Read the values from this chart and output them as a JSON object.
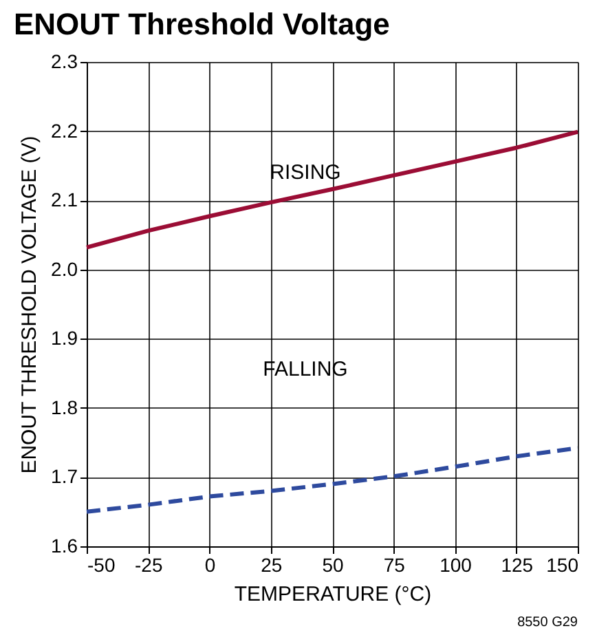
{
  "chart_data": {
    "type": "line",
    "title": "ENOUT Threshold Voltage",
    "xlabel": "TEMPERATURE (°C)",
    "ylabel": "ENOUT THRESHOLD VOLTAGE (V)",
    "x": [
      -50,
      -25,
      0,
      25,
      50,
      75,
      100,
      125,
      150
    ],
    "series": [
      {
        "color": "#9b0d35",
        "line_style": "solid",
        "values": [
          2.032,
          2.056,
          2.077,
          2.097,
          2.116,
          2.136,
          2.156,
          2.176,
          2.199
        ]
      },
      {
        "color": "#2e4a9e",
        "line_style": "dashed",
        "values": [
          1.65,
          1.66,
          1.672,
          1.68,
          1.69,
          1.701,
          1.715,
          1.73,
          1.742
        ]
      }
    ],
    "xlim": [
      -50,
      150
    ],
    "xticks": [
      -50,
      -25,
      0,
      25,
      50,
      75,
      100,
      125,
      150
    ],
    "ylim": [
      1.6,
      2.3
    ],
    "yticks": [
      {
        "value": 1.6,
        "label": "1.6"
      },
      {
        "value": 1.7,
        "label": "1.7"
      },
      {
        "value": 1.8,
        "label": "1.8"
      },
      {
        "value": 1.9,
        "label": "1.9"
      },
      {
        "value": 2.0,
        "label": "2.0"
      },
      {
        "value": 2.1,
        "label": "2.1"
      },
      {
        "value": 2.2,
        "label": "2.2"
      },
      {
        "value": 2.3,
        "label": "2.3"
      }
    ],
    "grid": true,
    "marker": "none",
    "annotations": [
      "RISING",
      "FALLING",
      "8550 G29"
    ]
  }
}
